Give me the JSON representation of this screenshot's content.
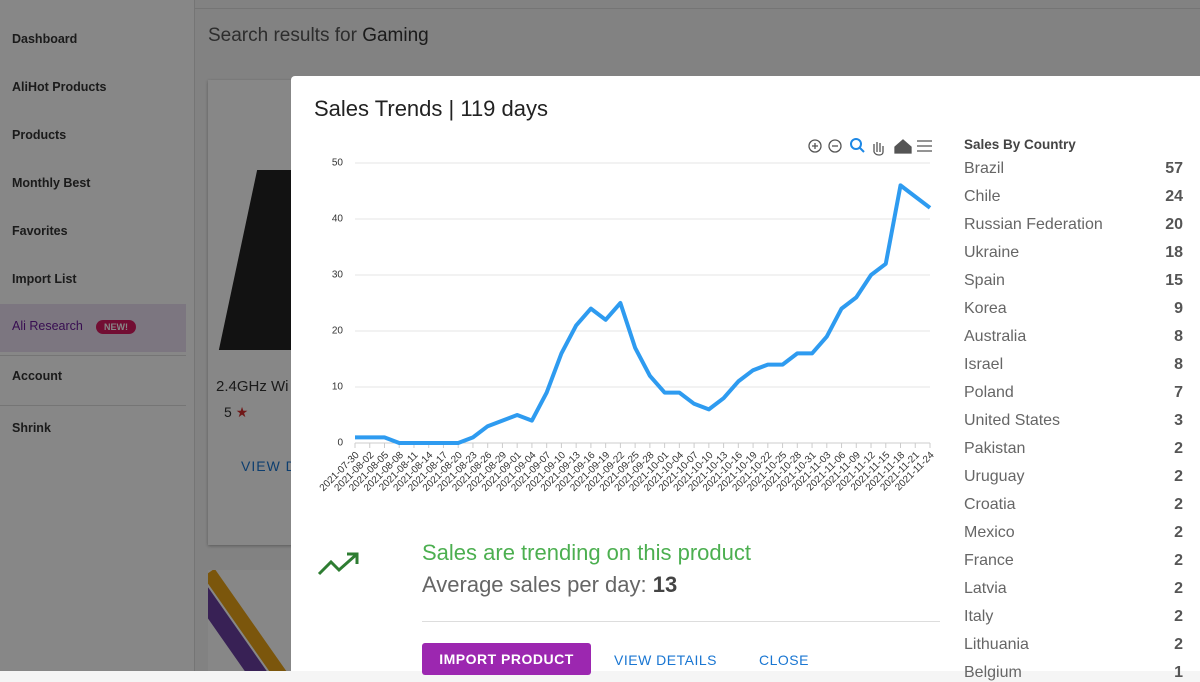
{
  "sidebar": {
    "items": [
      "Dashboard",
      "AliHot Products",
      "Products",
      "Monthly Best",
      "Favorites",
      "Import List",
      "Ali Research",
      "Account",
      "Shrink"
    ],
    "badge": "NEW!"
  },
  "background": {
    "search_prefix": "Search results for",
    "search_term": "Gaming",
    "product_title": "2.4GHz Wi",
    "rating": "5",
    "view_button": "VIEW D"
  },
  "modal": {
    "title": "Sales Trends | 119 days",
    "countries_title": "Sales By Country",
    "countries": [
      {
        "name": "Brazil",
        "count": 57
      },
      {
        "name": "Chile",
        "count": 24
      },
      {
        "name": "Russian Federation",
        "count": 20
      },
      {
        "name": "Ukraine",
        "count": 18
      },
      {
        "name": "Spain",
        "count": 15
      },
      {
        "name": "Korea",
        "count": 9
      },
      {
        "name": "Australia",
        "count": 8
      },
      {
        "name": "Israel",
        "count": 8
      },
      {
        "name": "Poland",
        "count": 7
      },
      {
        "name": "United States",
        "count": 3
      },
      {
        "name": "Pakistan",
        "count": 2
      },
      {
        "name": "Uruguay",
        "count": 2
      },
      {
        "name": "Croatia",
        "count": 2
      },
      {
        "name": "Mexico",
        "count": 2
      },
      {
        "name": "France",
        "count": 2
      },
      {
        "name": "Latvia",
        "count": 2
      },
      {
        "name": "Italy",
        "count": 2
      },
      {
        "name": "Lithuania",
        "count": 2
      },
      {
        "name": "Belgium",
        "count": 1
      }
    ],
    "trend_message": "Sales are trending on this product",
    "avg_label": "Average sales per day:",
    "avg_value": 13,
    "buttons": [
      "IMPORT PRODUCT",
      "VIEW DETAILS",
      "CLOSE"
    ]
  },
  "chart_data": {
    "type": "line",
    "categories": [
      "2021-07-30",
      "2021-08-02",
      "2021-08-05",
      "2021-08-08",
      "2021-08-11",
      "2021-08-14",
      "2021-08-17",
      "2021-08-20",
      "2021-08-23",
      "2021-08-26",
      "2021-08-29",
      "2021-09-01",
      "2021-09-04",
      "2021-09-07",
      "2021-09-10",
      "2021-09-13",
      "2021-09-16",
      "2021-09-19",
      "2021-09-22",
      "2021-09-25",
      "2021-09-28",
      "2021-10-01",
      "2021-10-04",
      "2021-10-07",
      "2021-10-10",
      "2021-10-13",
      "2021-10-16",
      "2021-10-19",
      "2021-10-22",
      "2021-10-25",
      "2021-10-28",
      "2021-10-31",
      "2021-11-03",
      "2021-11-06",
      "2021-11-09",
      "2021-11-12",
      "2021-11-15",
      "2021-11-18",
      "2021-11-21",
      "2021-11-24"
    ],
    "values": [
      1,
      1,
      1,
      0,
      0,
      0,
      0,
      0,
      1,
      3,
      4,
      5,
      4,
      9,
      16,
      21,
      24,
      22,
      25,
      17,
      12,
      9,
      9,
      7,
      6,
      8,
      11,
      13,
      14,
      14,
      16,
      16,
      19,
      24,
      26,
      30,
      32,
      46,
      44,
      42
    ],
    "color": "#2e9bf0",
    "ylim": [
      0,
      50
    ],
    "yticks": [
      0,
      10,
      20,
      30,
      40,
      50
    ],
    "grid": true
  }
}
